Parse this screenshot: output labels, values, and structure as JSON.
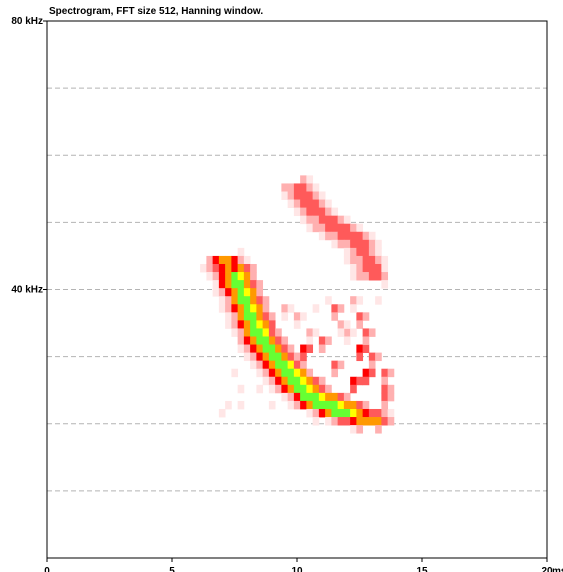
{
  "chart_data": {
    "type": "heatmap",
    "title": "Spectrogram, FFT size 512, Hanning window.",
    "x": {
      "min": 0,
      "max": 20,
      "ticks": [
        0,
        5,
        10,
        15,
        20
      ],
      "unit_label": "ms"
    },
    "y": {
      "min": 0,
      "max": 80,
      "unit": "kHz",
      "labeled_ticks": [
        {
          "value": 80,
          "label": "80 kHz"
        },
        {
          "value": 40,
          "label": "40 kHz"
        }
      ],
      "gridlines": [
        10,
        20,
        30,
        40,
        50,
        60,
        70
      ]
    },
    "grid": true,
    "colormap": [
      "#ffe6e6",
      "#ffb0b0",
      "#ff5a5a",
      "#ff0000",
      "#ff9900",
      "#ffff00",
      "#66ff33",
      "#00e0a0"
    ],
    "components": [
      {
        "name": "main-sweep",
        "points": [
          [
            7.1,
            44.5
          ],
          [
            7.4,
            43
          ],
          [
            7.8,
            39.5
          ],
          [
            8.2,
            35.5
          ],
          [
            8.6,
            32.5
          ],
          [
            9.2,
            29.5
          ],
          [
            9.9,
            26.5
          ],
          [
            10.6,
            24
          ],
          [
            11.4,
            22.5
          ],
          [
            12.4,
            21.2
          ],
          [
            13.2,
            20.3
          ]
        ],
        "peak_level": 7,
        "spread": 1.3
      },
      {
        "name": "upper-harmonic",
        "points": [
          [
            10.0,
            55.5
          ],
          [
            10.8,
            51.5
          ],
          [
            11.7,
            49
          ],
          [
            12.5,
            47
          ],
          [
            13.1,
            42
          ]
        ],
        "peak_level": 3,
        "spread": 1.0
      }
    ],
    "scatter_cells": [
      [
        11.5,
        37.6,
        3
      ],
      [
        12.5,
        35.7,
        3
      ],
      [
        12.0,
        34.0,
        2
      ],
      [
        10.5,
        33.5,
        2
      ],
      [
        11.0,
        32.1,
        3
      ],
      [
        12.5,
        31.5,
        4
      ],
      [
        13.0,
        30.0,
        3
      ],
      [
        10.3,
        31.0,
        4
      ],
      [
        11.5,
        28.5,
        3
      ],
      [
        12.8,
        28.0,
        4
      ],
      [
        13.4,
        27.0,
        3
      ],
      [
        12.3,
        26.0,
        4
      ],
      [
        13.6,
        25.5,
        3
      ],
      [
        11.0,
        25.0,
        2
      ],
      [
        13.5,
        24.0,
        3
      ],
      [
        9.5,
        37.0,
        2
      ],
      [
        10.0,
        35.5,
        2
      ],
      [
        9.0,
        33.5,
        2
      ],
      [
        8.2,
        31.0,
        1
      ],
      [
        7.5,
        27.5,
        1
      ],
      [
        7.8,
        25.5,
        1
      ],
      [
        7.2,
        23.0,
        1
      ],
      [
        7.8,
        22.5,
        1
      ],
      [
        7.0,
        21.5,
        1
      ],
      [
        8.5,
        25.0,
        1
      ],
      [
        9.0,
        22.5,
        1
      ],
      [
        10.5,
        22.0,
        1
      ],
      [
        10.8,
        20.5,
        1
      ],
      [
        11.8,
        21.0,
        2
      ],
      [
        12.2,
        20.0,
        2
      ],
      [
        13.0,
        21.5,
        3
      ],
      [
        13.3,
        20.0,
        3
      ],
      [
        12.8,
        33.0,
        3
      ],
      [
        11.7,
        35.0,
        2
      ],
      [
        10.8,
        37.5,
        1
      ],
      [
        11.3,
        38.5,
        1
      ],
      [
        12.2,
        38.0,
        2
      ],
      [
        13.2,
        38.5,
        1
      ],
      [
        13.4,
        41.0,
        1
      ],
      [
        12.9,
        44.5,
        1
      ]
    ]
  }
}
